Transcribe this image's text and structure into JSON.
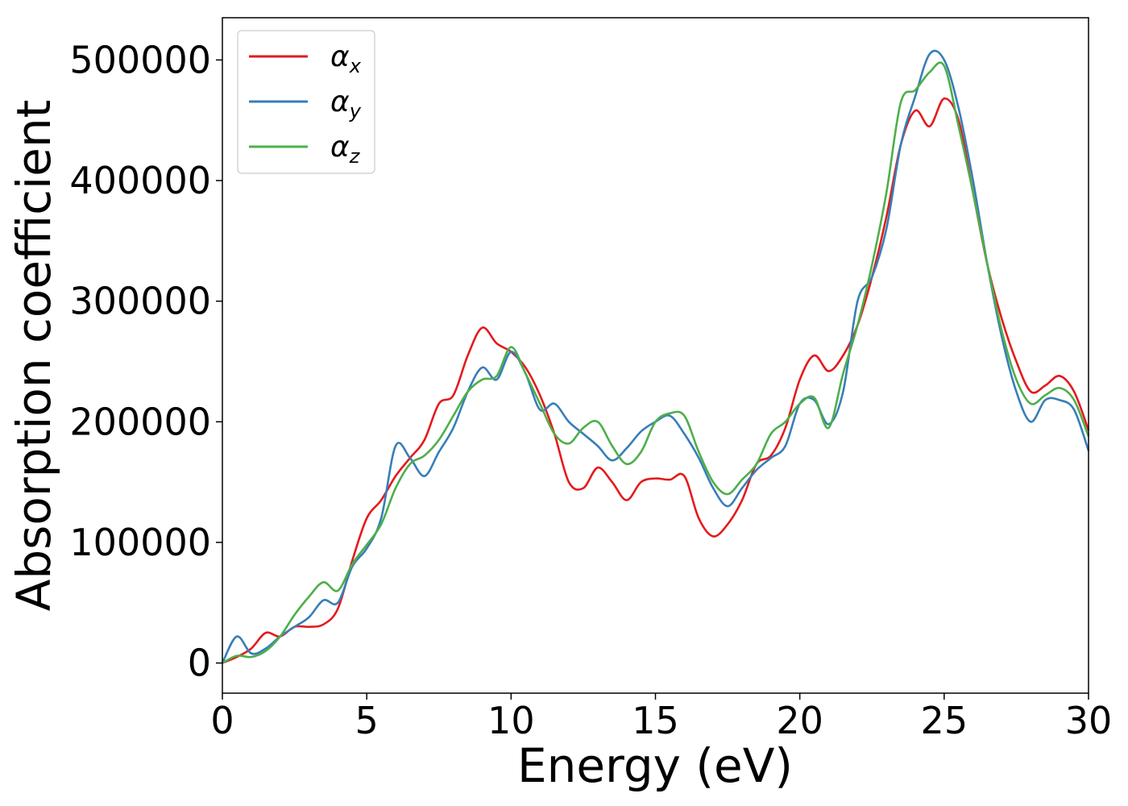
{
  "chart_data": {
    "type": "line",
    "xlabel": "Energy (eV)",
    "ylabel": "Absorption coefficient",
    "xlim": [
      0,
      30
    ],
    "ylim": [
      -25000,
      535000
    ],
    "xticks": [
      "0",
      "5",
      "10",
      "15",
      "20",
      "25",
      "30"
    ],
    "yticks": [
      "0",
      "100000",
      "200000",
      "300000",
      "400000",
      "500000"
    ],
    "grid": false,
    "legend_position": "top-left",
    "series": [
      {
        "name": "α",
        "subscript": "x",
        "color": "#e41a1c",
        "x": [
          0,
          0.5,
          1,
          1.5,
          2,
          2.5,
          3,
          3.5,
          4,
          4.5,
          5,
          5.5,
          6,
          6.5,
          7,
          7.5,
          8,
          8.5,
          9,
          9.5,
          10,
          10.5,
          11,
          11.5,
          12,
          12.5,
          13,
          13.5,
          14,
          14.5,
          15,
          15.5,
          16,
          16.5,
          17,
          17.5,
          18,
          18.5,
          19,
          19.5,
          20,
          20.5,
          21,
          21.5,
          22,
          22.5,
          23,
          23.5,
          24,
          24.5,
          25,
          25.5,
          26,
          26.5,
          27,
          27.5,
          28,
          28.5,
          29,
          29.5,
          30
        ],
        "y": [
          0,
          5000,
          12000,
          25000,
          22000,
          30000,
          30000,
          32000,
          45000,
          85000,
          120000,
          135000,
          155000,
          170000,
          185000,
          215000,
          222000,
          255000,
          278000,
          265000,
          258000,
          245000,
          222000,
          190000,
          150000,
          145000,
          162000,
          150000,
          135000,
          150000,
          153000,
          152000,
          155000,
          120000,
          105000,
          115000,
          135000,
          165000,
          172000,
          195000,
          235000,
          255000,
          242000,
          255000,
          280000,
          320000,
          370000,
          430000,
          458000,
          445000,
          468000,
          450000,
          390000,
          330000,
          285000,
          250000,
          225000,
          230000,
          238000,
          225000,
          193000
        ]
      },
      {
        "name": "α",
        "subscript": "y",
        "color": "#377eb8",
        "x": [
          0,
          0.5,
          1,
          1.5,
          2,
          2.5,
          3,
          3.5,
          4,
          4.5,
          5,
          5.5,
          6,
          6.5,
          7,
          7.5,
          8,
          8.5,
          9,
          9.5,
          10,
          10.5,
          11,
          11.5,
          12,
          12.5,
          13,
          13.5,
          14,
          14.5,
          15,
          15.5,
          16,
          16.5,
          17,
          17.5,
          18,
          18.5,
          19,
          19.5,
          20,
          20.5,
          21,
          21.5,
          22,
          22.5,
          23,
          23.5,
          24,
          24.5,
          25,
          25.5,
          26,
          26.5,
          27,
          27.5,
          28,
          28.5,
          29,
          29.5,
          30
        ],
        "y": [
          0,
          22000,
          8000,
          12000,
          22000,
          30000,
          38000,
          52000,
          50000,
          80000,
          95000,
          120000,
          180000,
          170000,
          155000,
          175000,
          195000,
          225000,
          245000,
          235000,
          258000,
          240000,
          210000,
          215000,
          200000,
          190000,
          180000,
          168000,
          178000,
          192000,
          200000,
          205000,
          190000,
          170000,
          145000,
          130000,
          145000,
          160000,
          170000,
          180000,
          215000,
          218000,
          198000,
          225000,
          300000,
          320000,
          360000,
          430000,
          470000,
          505000,
          500000,
          460000,
          400000,
          330000,
          270000,
          225000,
          200000,
          218000,
          218000,
          210000,
          176000
        ]
      },
      {
        "name": "α",
        "subscript": "z",
        "color": "#4daf4a",
        "x": [
          0,
          0.5,
          1,
          1.5,
          2,
          2.5,
          3,
          3.5,
          4,
          4.5,
          5,
          5.5,
          6,
          6.5,
          7,
          7.5,
          8,
          8.5,
          9,
          9.5,
          10,
          10.5,
          11,
          11.5,
          12,
          12.5,
          13,
          13.5,
          14,
          14.5,
          15,
          15.5,
          16,
          16.5,
          17,
          17.5,
          18,
          18.5,
          19,
          19.5,
          20,
          20.5,
          21,
          21.5,
          22,
          22.5,
          23,
          23.5,
          24,
          24.5,
          25,
          25.5,
          26,
          26.5,
          27,
          27.5,
          28,
          28.5,
          29,
          29.5,
          30
        ],
        "y": [
          0,
          6000,
          5000,
          10000,
          22000,
          40000,
          55000,
          67000,
          60000,
          82000,
          98000,
          115000,
          145000,
          165000,
          172000,
          185000,
          205000,
          225000,
          235000,
          238000,
          262000,
          240000,
          215000,
          190000,
          182000,
          195000,
          200000,
          180000,
          165000,
          175000,
          200000,
          207000,
          205000,
          175000,
          150000,
          140000,
          152000,
          165000,
          190000,
          200000,
          215000,
          220000,
          195000,
          240000,
          280000,
          330000,
          390000,
          465000,
          475000,
          490000,
          495000,
          445000,
          390000,
          330000,
          275000,
          235000,
          215000,
          222000,
          228000,
          218000,
          188000
        ]
      }
    ]
  }
}
